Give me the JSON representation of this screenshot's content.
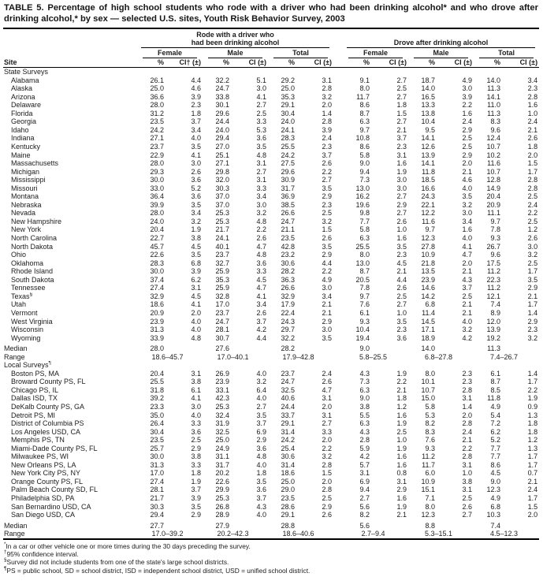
{
  "title": "TABLE 5. Percentage of high school students who rode with a driver who had been drinking alcohol* and who drove after drinking alcohol,* by sex — selected U.S. sites, Youth Risk Behavior Survey, 2003",
  "header": {
    "site": "Site",
    "group1_line1": "Rode with a driver who",
    "group1_line2": "had been drinking alcohol",
    "group2": "Drove after drinking alcohol",
    "subgroups": [
      "Female",
      "Male",
      "Total"
    ],
    "pct": "%",
    "ci_dagger": "CI† (±)",
    "ci": "CI (±)"
  },
  "sections": [
    {
      "label": "State Surveys",
      "rows": [
        {
          "site": "Alabama",
          "values": [
            "26.1",
            "4.4",
            "32.2",
            "5.1",
            "29.2",
            "3.1",
            "9.1",
            "2.7",
            "18.7",
            "4.9",
            "14.0",
            "3.4"
          ]
        },
        {
          "site": "Alaska",
          "values": [
            "25.0",
            "4.6",
            "24.7",
            "3.0",
            "25.0",
            "2.8",
            "8.0",
            "2.5",
            "14.0",
            "3.0",
            "11.3",
            "2.3"
          ]
        },
        {
          "site": "Arizona",
          "values": [
            "36.6",
            "3.9",
            "33.8",
            "4.1",
            "35.3",
            "3.2",
            "11.7",
            "2.7",
            "16.5",
            "3.9",
            "14.1",
            "2.8"
          ]
        },
        {
          "site": "Delaware",
          "values": [
            "28.0",
            "2.3",
            "30.1",
            "2.7",
            "29.1",
            "2.0",
            "8.6",
            "1.8",
            "13.3",
            "2.2",
            "11.0",
            "1.6"
          ]
        },
        {
          "site": "Florida",
          "values": [
            "31.2",
            "1.8",
            "29.6",
            "2.5",
            "30.4",
            "1.4",
            "8.7",
            "1.5",
            "13.8",
            "1.6",
            "11.3",
            "1.0"
          ]
        },
        {
          "site": "Georgia",
          "values": [
            "23.5",
            "3.7",
            "24.4",
            "3.3",
            "24.0",
            "2.8",
            "6.3",
            "2.7",
            "10.4",
            "2.4",
            "8.3",
            "2.4"
          ]
        },
        {
          "site": "Idaho",
          "values": [
            "24.2",
            "3.4",
            "24.0",
            "5.3",
            "24.1",
            "3.9",
            "9.7",
            "2.1",
            "9.5",
            "2.9",
            "9.6",
            "2.1"
          ]
        },
        {
          "site": "Indiana",
          "values": [
            "27.1",
            "4.0",
            "29.4",
            "3.6",
            "28.3",
            "2.4",
            "10.8",
            "3.7",
            "14.1",
            "2.5",
            "12.4",
            "2.6"
          ]
        },
        {
          "site": "Kentucky",
          "values": [
            "23.7",
            "3.5",
            "27.0",
            "3.5",
            "25.5",
            "2.3",
            "8.6",
            "2.3",
            "12.6",
            "2.5",
            "10.7",
            "1.8"
          ]
        },
        {
          "site": "Maine",
          "values": [
            "22.9",
            "4.1",
            "25.1",
            "4.8",
            "24.2",
            "3.7",
            "5.8",
            "3.1",
            "13.9",
            "2.9",
            "10.2",
            "2.0"
          ]
        },
        {
          "site": "Massachusetts",
          "values": [
            "28.0",
            "3.0",
            "27.1",
            "3.1",
            "27.5",
            "2.6",
            "9.0",
            "1.6",
            "14.1",
            "2.0",
            "11.6",
            "1.5"
          ]
        },
        {
          "site": "Michigan",
          "values": [
            "29.3",
            "2.6",
            "29.8",
            "2.7",
            "29.6",
            "2.2",
            "9.4",
            "1.9",
            "11.8",
            "2.1",
            "10.7",
            "1.7"
          ]
        },
        {
          "site": "Mississippi",
          "values": [
            "30.0",
            "3.6",
            "32.0",
            "3.1",
            "30.9",
            "2.7",
            "7.3",
            "3.0",
            "18.5",
            "4.6",
            "12.8",
            "2.8"
          ]
        },
        {
          "site": "Missouri",
          "values": [
            "33.0",
            "5.2",
            "30.3",
            "3.3",
            "31.7",
            "3.5",
            "13.0",
            "3.0",
            "16.6",
            "4.0",
            "14.9",
            "2.8"
          ]
        },
        {
          "site": "Montana",
          "values": [
            "36.4",
            "3.6",
            "37.0",
            "3.4",
            "36.9",
            "2.9",
            "16.2",
            "2.7",
            "24.3",
            "3.5",
            "20.4",
            "2.5"
          ]
        },
        {
          "site": "Nebraska",
          "values": [
            "39.9",
            "3.5",
            "37.0",
            "3.0",
            "38.5",
            "2.3",
            "19.6",
            "2.9",
            "22.1",
            "3.2",
            "20.9",
            "2.4"
          ]
        },
        {
          "site": "Nevada",
          "values": [
            "28.0",
            "3.4",
            "25.3",
            "3.2",
            "26.6",
            "2.5",
            "9.8",
            "2.7",
            "12.2",
            "3.0",
            "11.1",
            "2.2"
          ]
        },
        {
          "site": "New Hampshire",
          "values": [
            "24.0",
            "3.2",
            "25.3",
            "4.8",
            "24.7",
            "3.2",
            "7.7",
            "2.6",
            "11.6",
            "3.4",
            "9.7",
            "2.5"
          ]
        },
        {
          "site": "New York",
          "values": [
            "20.4",
            "1.9",
            "21.7",
            "2.2",
            "21.1",
            "1.5",
            "5.8",
            "1.0",
            "9.7",
            "1.6",
            "7.8",
            "1.2"
          ]
        },
        {
          "site": "North Carolina",
          "values": [
            "22.7",
            "3.8",
            "24.1",
            "2.6",
            "23.5",
            "2.6",
            "6.3",
            "1.6",
            "12.3",
            "4.0",
            "9.3",
            "2.6"
          ]
        },
        {
          "site": "North Dakota",
          "values": [
            "45.7",
            "4.5",
            "40.1",
            "4.7",
            "42.8",
            "3.5",
            "25.5",
            "3.5",
            "27.8",
            "4.1",
            "26.7",
            "3.0"
          ]
        },
        {
          "site": "Ohio",
          "values": [
            "22.6",
            "3.5",
            "23.7",
            "4.8",
            "23.2",
            "2.9",
            "8.0",
            "2.3",
            "10.9",
            "4.7",
            "9.6",
            "3.2"
          ]
        },
        {
          "site": "Oklahoma",
          "values": [
            "28.3",
            "6.8",
            "32.7",
            "3.6",
            "30.6",
            "4.4",
            "13.0",
            "4.5",
            "21.8",
            "2.0",
            "17.5",
            "2.5"
          ]
        },
        {
          "site": "Rhode Island",
          "values": [
            "30.0",
            "3.9",
            "25.9",
            "3.3",
            "28.2",
            "2.2",
            "8.7",
            "2.1",
            "13.5",
            "2.1",
            "11.2",
            "1.7"
          ]
        },
        {
          "site": "South Dakota",
          "values": [
            "37.4",
            "6.2",
            "35.3",
            "4.5",
            "36.3",
            "4.9",
            "20.5",
            "4.4",
            "23.9",
            "4.3",
            "22.3",
            "3.5"
          ]
        },
        {
          "site": "Tennessee",
          "values": [
            "27.4",
            "3.1",
            "25.9",
            "4.7",
            "26.6",
            "3.0",
            "7.8",
            "2.6",
            "14.6",
            "3.7",
            "11.2",
            "2.9"
          ]
        },
        {
          "site": "Texas§",
          "values": [
            "32.9",
            "4.5",
            "32.8",
            "4.1",
            "32.9",
            "3.4",
            "9.7",
            "2.5",
            "14.2",
            "2.5",
            "12.1",
            "2.1"
          ]
        },
        {
          "site": "Utah",
          "values": [
            "18.6",
            "4.1",
            "17.0",
            "3.4",
            "17.9",
            "2.1",
            "7.6",
            "2.7",
            "6.8",
            "2.1",
            "7.4",
            "1.7"
          ]
        },
        {
          "site": "Vermont",
          "values": [
            "20.9",
            "2.0",
            "23.7",
            "2.6",
            "22.4",
            "2.1",
            "6.1",
            "1.0",
            "11.4",
            "2.1",
            "8.9",
            "1.4"
          ]
        },
        {
          "site": "West Virginia",
          "values": [
            "23.9",
            "4.0",
            "24.7",
            "3.7",
            "24.3",
            "2.9",
            "9.3",
            "3.5",
            "14.5",
            "4.0",
            "12.0",
            "2.9"
          ]
        },
        {
          "site": "Wisconsin",
          "values": [
            "31.3",
            "4.0",
            "28.1",
            "4.2",
            "29.7",
            "3.0",
            "10.4",
            "2.3",
            "17.1",
            "3.2",
            "13.9",
            "2.3"
          ]
        },
        {
          "site": "Wyoming",
          "values": [
            "33.9",
            "4.8",
            "30.7",
            "4.4",
            "32.2",
            "3.5",
            "19.4",
            "3.6",
            "18.9",
            "4.2",
            "19.2",
            "3.2"
          ]
        }
      ],
      "median_label": "Median",
      "median": [
        "28.0",
        "27.6",
        "28.2",
        "9.0",
        "14.0",
        "11.3"
      ],
      "range_label": "Range",
      "range": [
        "18.6–45.7",
        "17.0–40.1",
        "17.9–42.8",
        "5.8–25.5",
        "6.8–27.8",
        "7.4–26.7"
      ]
    },
    {
      "label": "Local Surveys¶",
      "rows": [
        {
          "site": "Boston PS, MA",
          "values": [
            "20.4",
            "3.1",
            "26.9",
            "4.0",
            "23.7",
            "2.4",
            "4.3",
            "1.9",
            "8.0",
            "2.3",
            "6.1",
            "1.4"
          ]
        },
        {
          "site": "Broward County PS, FL",
          "values": [
            "25.5",
            "3.8",
            "23.9",
            "3.2",
            "24.7",
            "2.6",
            "7.3",
            "2.2",
            "10.1",
            "2.3",
            "8.7",
            "1.7"
          ]
        },
        {
          "site": "Chicago PS, IL",
          "values": [
            "31.8",
            "6.1",
            "33.1",
            "6.4",
            "32.5",
            "4.7",
            "6.3",
            "2.1",
            "10.7",
            "2.8",
            "8.5",
            "2.2"
          ]
        },
        {
          "site": "Dallas ISD, TX",
          "values": [
            "39.2",
            "4.1",
            "42.3",
            "4.0",
            "40.6",
            "3.1",
            "9.0",
            "1.8",
            "15.0",
            "3.1",
            "11.8",
            "1.9"
          ]
        },
        {
          "site": "DeKalb County PS, GA",
          "values": [
            "23.3",
            "3.0",
            "25.3",
            "2.7",
            "24.4",
            "2.0",
            "3.8",
            "1.2",
            "5.8",
            "1.4",
            "4.9",
            "0.9"
          ]
        },
        {
          "site": "Detroit PS, MI",
          "values": [
            "35.0",
            "4.0",
            "32.4",
            "3.5",
            "33.7",
            "3.1",
            "5.5",
            "1.6",
            "5.3",
            "2.0",
            "5.4",
            "1.3"
          ]
        },
        {
          "site": "District of Columbia PS",
          "values": [
            "26.4",
            "3.3",
            "31.9",
            "3.7",
            "29.1",
            "2.7",
            "6.3",
            "1.9",
            "8.2",
            "2.8",
            "7.2",
            "1.8"
          ]
        },
        {
          "site": "Los Angeles USD, CA",
          "values": [
            "30.4",
            "3.6",
            "32.5",
            "6.9",
            "31.4",
            "3.3",
            "4.3",
            "2.5",
            "8.3",
            "2.4",
            "6.2",
            "1.8"
          ]
        },
        {
          "site": "Memphis PS, TN",
          "values": [
            "23.5",
            "2.5",
            "25.0",
            "2.9",
            "24.2",
            "2.0",
            "2.8",
            "1.0",
            "7.6",
            "2.1",
            "5.2",
            "1.2"
          ]
        },
        {
          "site": "Miami-Dade County PS, FL",
          "values": [
            "25.7",
            "2.9",
            "24.9",
            "3.6",
            "25.4",
            "2.2",
            "5.9",
            "1.9",
            "9.3",
            "2.2",
            "7.7",
            "1.3"
          ]
        },
        {
          "site": "Milwaukee PS, WI",
          "values": [
            "30.0",
            "3.8",
            "31.1",
            "4.8",
            "30.6",
            "3.2",
            "4.2",
            "1.6",
            "11.2",
            "2.8",
            "7.7",
            "1.7"
          ]
        },
        {
          "site": "New Orleans PS, LA",
          "values": [
            "31.3",
            "3.3",
            "31.7",
            "4.0",
            "31.4",
            "2.8",
            "5.7",
            "1.6",
            "11.7",
            "3.1",
            "8.6",
            "1.7"
          ]
        },
        {
          "site": "New York City PS, NY",
          "values": [
            "17.0",
            "1.8",
            "20.2",
            "1.8",
            "18.6",
            "1.5",
            "3.1",
            "0.8",
            "6.0",
            "1.0",
            "4.5",
            "0.7"
          ]
        },
        {
          "site": "Orange County PS, FL",
          "values": [
            "27.4",
            "1.9",
            "22.6",
            "3.5",
            "25.0",
            "2.0",
            "6.9",
            "3.1",
            "10.9",
            "3.8",
            "9.0",
            "2.1"
          ]
        },
        {
          "site": "Palm Beach County SD, FL",
          "values": [
            "28.1",
            "3.7",
            "29.9",
            "3.6",
            "29.0",
            "2.8",
            "9.4",
            "2.9",
            "15.1",
            "3.1",
            "12.3",
            "2.4"
          ]
        },
        {
          "site": "Philadelphia SD, PA",
          "values": [
            "21.7",
            "3.9",
            "25.3",
            "3.7",
            "23.5",
            "2.5",
            "2.7",
            "1.6",
            "7.1",
            "2.5",
            "4.9",
            "1.7"
          ]
        },
        {
          "site": "San Bernardino USD, CA",
          "values": [
            "30.3",
            "3.5",
            "26.8",
            "4.3",
            "28.6",
            "2.9",
            "5.6",
            "1.9",
            "8.0",
            "2.6",
            "6.8",
            "1.5"
          ]
        },
        {
          "site": "San Diego USD, CA",
          "values": [
            "29.4",
            "2.9",
            "28.9",
            "4.0",
            "29.1",
            "2.6",
            "8.2",
            "2.1",
            "12.3",
            "2.7",
            "10.3",
            "2.0"
          ]
        }
      ],
      "median_label": "Median",
      "median": [
        "27.7",
        "27.9",
        "28.8",
        "5.6",
        "8.8",
        "7.4"
      ],
      "range_label": "Range",
      "range": [
        "17.0–39.2",
        "20.2–42.3",
        "18.6–40.6",
        "2.7–9.4",
        "5.3–15.1",
        "4.5–12.3"
      ]
    }
  ],
  "footnotes": [
    {
      "marker": "*",
      "text": "In a car or other vehicle one or more times during the 30 days preceding the survey."
    },
    {
      "marker": "†",
      "text": "95% confidence interval."
    },
    {
      "marker": "§",
      "text": "Survey did not include students from one of the state's large school districts."
    },
    {
      "marker": "¶",
      "text": "PS = public school, SD = school district, ISD = independent school district, USD = unified school district."
    }
  ]
}
